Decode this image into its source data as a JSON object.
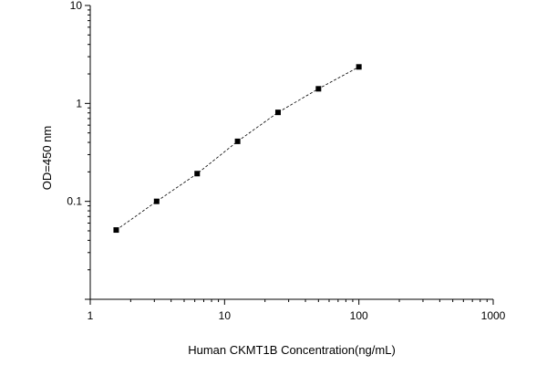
{
  "chart_data": {
    "type": "scatter",
    "xlabel": "Human CKMT1B Concentration(ng/mL)",
    "ylabel": "OD=450 nm",
    "x_scale": "log",
    "y_scale": "log",
    "xlim": [
      1,
      1000
    ],
    "ylim": [
      0.01,
      10
    ],
    "x_ticks": [
      "1",
      "10",
      "100",
      "1000"
    ],
    "y_ticks": [
      "0.1",
      "1",
      "10"
    ],
    "grid": false,
    "legend": "none",
    "series": [
      {
        "x": [
          1.56,
          3.12,
          6.25,
          12.5,
          25,
          50,
          100
        ],
        "y": [
          0.051,
          0.1,
          0.192,
          0.41,
          0.81,
          1.41,
          2.36
        ],
        "connect": "dashed"
      }
    ],
    "colors": {
      "marker": "#000000",
      "line": "#000000",
      "axis": "#000000"
    }
  }
}
